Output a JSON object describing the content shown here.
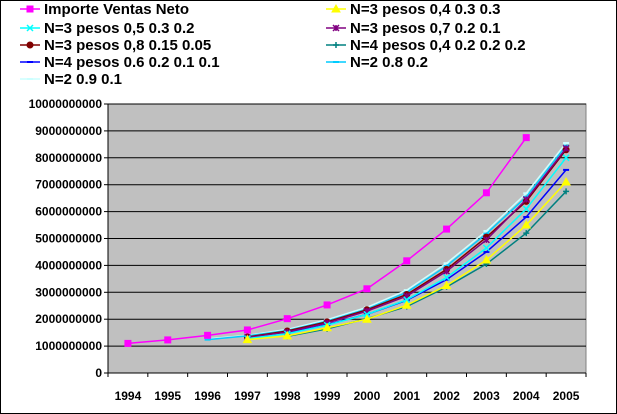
{
  "chart_data": {
    "type": "line",
    "title": "",
    "xlabel": "",
    "ylabel": "",
    "x": [
      "1994",
      "1995",
      "1996",
      "1997",
      "1998",
      "1999",
      "2000",
      "2001",
      "2002",
      "2003",
      "2004",
      "2005"
    ],
    "ylim": [
      0,
      10000000000
    ],
    "y_ticks": [
      "0",
      "1000000000",
      "2000000000",
      "3000000000",
      "4000000000",
      "5000000000",
      "6000000000",
      "7000000000",
      "8000000000",
      "9000000000",
      "10000000000"
    ],
    "plot_background": "#c0c0c0",
    "grid": "horizontal",
    "legend_position": "top",
    "series": [
      {
        "name": "Importe Ventas Neto",
        "color": "#ff00ff",
        "marker": "square",
        "values": [
          1100000000,
          1230000000,
          1400000000,
          1600000000,
          2020000000,
          2530000000,
          3130000000,
          4170000000,
          5350000000,
          6700000000,
          8750000000,
          null
        ]
      },
      {
        "name": "N=3 pesos 0,4 0.3 0.3",
        "color": "#ffff00",
        "marker": "triangle",
        "values": [
          null,
          null,
          null,
          1240000000,
          1380000000,
          1680000000,
          2000000000,
          2520000000,
          3250000000,
          4200000000,
          5500000000,
          7100000000
        ]
      },
      {
        "name": "N=3 pesos 0,5 0.3 0.2",
        "color": "#00ffff",
        "marker": "x",
        "values": [
          null,
          null,
          null,
          1280000000,
          1460000000,
          1780000000,
          2180000000,
          2720000000,
          3550000000,
          4650000000,
          6100000000,
          8000000000
        ]
      },
      {
        "name": "N=3 pesos 0,7 0.2 0.1",
        "color": "#800080",
        "marker": "asterisk",
        "values": [
          null,
          null,
          null,
          1320000000,
          1520000000,
          1860000000,
          2300000000,
          2860000000,
          3780000000,
          4950000000,
          6450000000,
          8350000000
        ]
      },
      {
        "name": "N=3 pesos 0,8 0.15 0.05",
        "color": "#800000",
        "marker": "circle",
        "values": [
          null,
          null,
          null,
          1340000000,
          1560000000,
          1900000000,
          2350000000,
          2920000000,
          3850000000,
          5050000000,
          6380000000,
          8300000000
        ]
      },
      {
        "name": "N=4 pesos 0,4 0.2 0.2 0.2",
        "color": "#008080",
        "marker": "plus",
        "values": [
          null,
          null,
          null,
          null,
          1360000000,
          1640000000,
          2020000000,
          2470000000,
          3200000000,
          4050000000,
          5200000000,
          6750000000
        ]
      },
      {
        "name": "N=4 pesos 0.6 0.2 0.1 0.1",
        "color": "#0000ff",
        "marker": "dash",
        "values": [
          null,
          null,
          null,
          null,
          1480000000,
          1800000000,
          2180000000,
          2700000000,
          3470000000,
          4500000000,
          5800000000,
          7550000000
        ]
      },
      {
        "name": "N=2 0.8 0.2",
        "color": "#00ccff",
        "marker": "dash",
        "values": [
          null,
          null,
          1240000000,
          1380000000,
          1580000000,
          1930000000,
          2380000000,
          3000000000,
          3980000000,
          5180000000,
          6550000000,
          8450000000
        ]
      },
      {
        "name": "N=2 0.9 0.1",
        "color": "#ccffff",
        "marker": "dash",
        "values": [
          null,
          null,
          1270000000,
          1400000000,
          1620000000,
          1980000000,
          2440000000,
          3080000000,
          4080000000,
          5280000000,
          6680000000,
          8550000000
        ]
      }
    ]
  }
}
